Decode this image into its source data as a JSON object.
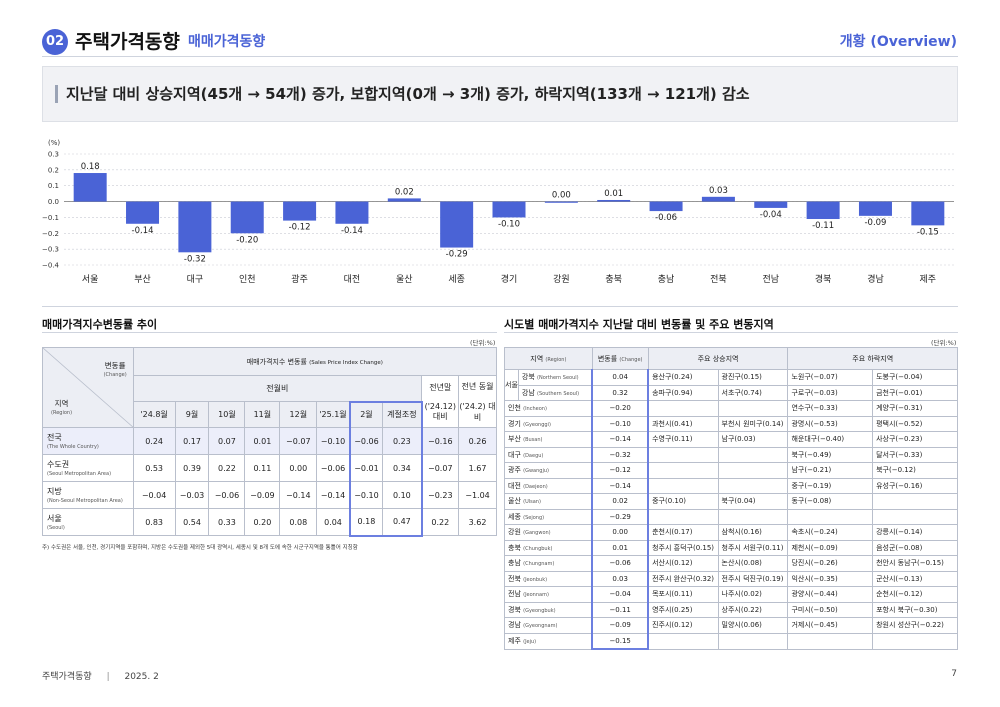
{
  "header": {
    "number": "02",
    "title": "주택가격동향",
    "subtitle": "매매가격동향",
    "overview": "개황 (Overview)"
  },
  "headline": "지난달 대비 상승지역(45개 → 54개) 증가, 보합지역(0개 → 3개) 증가, 하락지역(133개 → 121개) 감소",
  "chart_data": {
    "type": "bar",
    "unit_label": "(%)",
    "categories": [
      "서울",
      "부산",
      "대구",
      "인천",
      "광주",
      "대전",
      "울산",
      "세종",
      "경기",
      "강원",
      "충북",
      "충남",
      "전북",
      "전남",
      "경북",
      "경남",
      "제주"
    ],
    "values": [
      0.18,
      -0.14,
      -0.32,
      -0.2,
      -0.12,
      -0.14,
      0.02,
      -0.29,
      -0.1,
      0.0,
      0.01,
      -0.06,
      0.03,
      -0.04,
      -0.11,
      -0.09,
      -0.15
    ],
    "value_labels": [
      "0.18",
      "-0.14",
      "-0.32",
      "-0.20",
      "-0.12",
      "-0.14",
      "0.02",
      "-0.29",
      "-0.10",
      "0.00",
      "0.01",
      "-0.06",
      "0.03",
      "-0.04",
      "-0.11",
      "-0.09",
      "-0.15"
    ],
    "ylim": [
      -0.4,
      0.3
    ],
    "yticks": [
      0.3,
      0.2,
      0.1,
      0.0,
      -0.1,
      -0.2,
      -0.3,
      -0.4
    ],
    "ytick_labels": [
      "0.3",
      "0.2",
      "0.1",
      "0.0",
      "−0.1",
      "−0.2",
      "−0.3",
      "−0.4"
    ],
    "grid": true,
    "bar_color": "#4a63d6"
  },
  "left_table": {
    "title": "매매가격지수변동률 추이",
    "unit": "(단위:%)",
    "corner_change": "변동률",
    "corner_change_en": "(Change)",
    "corner_region": "지역",
    "corner_region_en": "(Region)",
    "group_header": "매매가격지수 변동률",
    "group_header_en": "(Sales Price Index Change)",
    "mom_header": "전월비",
    "prev_year_end": "전년말",
    "same_month_last_year": "전년 동월",
    "columns": [
      "'24.8월",
      "9월",
      "10월",
      "11월",
      "12월",
      "'25.1월",
      "2월",
      "계절조정"
    ],
    "col_yearend": "('24.12) 대비",
    "col_samemonth": "('24.2) 대비",
    "rows": [
      {
        "name": "전국",
        "en": "(The Whole Country)",
        "values": [
          "0.24",
          "0.17",
          "0.07",
          "0.01",
          "−0.07",
          "−0.10",
          "−0.06",
          "0.23",
          "−0.16",
          "0.26"
        ]
      },
      {
        "name": "수도권",
        "en": "(Seoul Metropolitan Area)",
        "values": [
          "0.53",
          "0.39",
          "0.22",
          "0.11",
          "0.00",
          "−0.06",
          "−0.01",
          "0.34",
          "−0.07",
          "1.67"
        ]
      },
      {
        "name": "지방",
        "en": "(Non-Seoul Metropolitan Area)",
        "values": [
          "−0.04",
          "−0.03",
          "−0.06",
          "−0.09",
          "−0.14",
          "−0.14",
          "−0.10",
          "0.10",
          "−0.23",
          "−1.04"
        ]
      },
      {
        "name": "서울",
        "en": "(Seoul)",
        "values": [
          "0.83",
          "0.54",
          "0.33",
          "0.20",
          "0.08",
          "0.04",
          "0.18",
          "0.47",
          "0.22",
          "3.62"
        ]
      }
    ],
    "note": "주) 수도권은 서울, 인천, 경기지역을 포함하며, 지방은 수도권을 제외한 5대 광역시, 세종시 및 8개 도에 속한 시군구지역을 통틀어 지칭함"
  },
  "right_table": {
    "title": "시도별 매매가격지수 지난달 대비 변동률 및 주요 변동지역",
    "unit": "(단위:%)",
    "h_region": "지역",
    "h_region_en": "(Region)",
    "h_change": "변동률",
    "h_change_en": "(Change)",
    "h_up": "주요 상승지역",
    "h_down": "주요 하락지역",
    "seoul": "서울",
    "rows": [
      {
        "region": "강북",
        "en": "(Northern Seoul)",
        "change": "0.04",
        "up1": "용산구(0.24)",
        "up2": "광진구(0.15)",
        "down1": "노원구(−0.07)",
        "down2": "도봉구(−0.04)"
      },
      {
        "region": "강남",
        "en": "(Southern Seoul)",
        "change": "0.32",
        "up1": "송파구(0.94)",
        "up2": "서초구(0.74)",
        "down1": "구로구(−0.03)",
        "down2": "금천구(−0.01)"
      },
      {
        "region": "인천",
        "en": "(Incheon)",
        "change": "−0.20",
        "up1": "",
        "up2": "",
        "down1": "연수구(−0.33)",
        "down2": "계양구(−0.31)"
      },
      {
        "region": "경기",
        "en": "(Gyeonggi)",
        "change": "−0.10",
        "up1": "과천시(0.41)",
        "up2": "부천시 원미구(0.14)",
        "down1": "광명시(−0.53)",
        "down2": "평택시(−0.52)"
      },
      {
        "region": "부산",
        "en": "(Busan)",
        "change": "−0.14",
        "up1": "수영구(0.11)",
        "up2": "남구(0.03)",
        "down1": "해운대구(−0.40)",
        "down2": "사상구(−0.23)"
      },
      {
        "region": "대구",
        "en": "(Daegu)",
        "change": "−0.32",
        "up1": "",
        "up2": "",
        "down1": "북구(−0.49)",
        "down2": "달서구(−0.33)"
      },
      {
        "region": "광주",
        "en": "(Gwangju)",
        "change": "−0.12",
        "up1": "",
        "up2": "",
        "down1": "남구(−0.21)",
        "down2": "북구(−0.12)"
      },
      {
        "region": "대전",
        "en": "(Daejeon)",
        "change": "−0.14",
        "up1": "",
        "up2": "",
        "down1": "중구(−0.19)",
        "down2": "유성구(−0.16)"
      },
      {
        "region": "울산",
        "en": "(Ulsan)",
        "change": "0.02",
        "up1": "중구(0.10)",
        "up2": "북구(0.04)",
        "down1": "동구(−0.08)",
        "down2": ""
      },
      {
        "region": "세종",
        "en": "(Sejong)",
        "change": "−0.29",
        "up1": "",
        "up2": "",
        "down1": "",
        "down2": ""
      },
      {
        "region": "강원",
        "en": "(Gangwon)",
        "change": "0.00",
        "up1": "춘천시(0.17)",
        "up2": "삼척시(0.16)",
        "down1": "속초시(−0.24)",
        "down2": "강릉시(−0.14)"
      },
      {
        "region": "충북",
        "en": "(Chungbuk)",
        "change": "0.01",
        "up1": "청주시 흥덕구(0.15)",
        "up2": "청주시 서원구(0.11)",
        "down1": "제천시(−0.09)",
        "down2": "음성군(−0.08)"
      },
      {
        "region": "충남",
        "en": "(Chungnam)",
        "change": "−0.06",
        "up1": "서산시(0.12)",
        "up2": "논산시(0.08)",
        "down1": "당진시(−0.26)",
        "down2": "천안시 동남구(−0.15)"
      },
      {
        "region": "전북",
        "en": "(Jeonbuk)",
        "change": "0.03",
        "up1": "전주시 완산구(0.32)",
        "up2": "전주시 덕진구(0.19)",
        "down1": "익산시(−0.35)",
        "down2": "군산시(−0.13)"
      },
      {
        "region": "전남",
        "en": "(Jeonnam)",
        "change": "−0.04",
        "up1": "목포시(0.11)",
        "up2": "나주시(0.02)",
        "down1": "광양시(−0.44)",
        "down2": "순천시(−0.12)"
      },
      {
        "region": "경북",
        "en": "(Gyeongbuk)",
        "change": "−0.11",
        "up1": "영주시(0.25)",
        "up2": "상주시(0.22)",
        "down1": "구미시(−0.50)",
        "down2": "포항시 북구(−0.30)"
      },
      {
        "region": "경남",
        "en": "(Gyeongnam)",
        "change": "−0.09",
        "up1": "진주시(0.12)",
        "up2": "밀양시(0.06)",
        "down1": "거제시(−0.45)",
        "down2": "창원시 성산구(−0.22)"
      },
      {
        "region": "제주",
        "en": "(Jeju)",
        "change": "−0.15",
        "up1": "",
        "up2": "",
        "down1": "",
        "down2": ""
      }
    ]
  },
  "footer": {
    "text": "주택가격동향",
    "sep": "|",
    "date": "2025. 2",
    "page": "7"
  }
}
